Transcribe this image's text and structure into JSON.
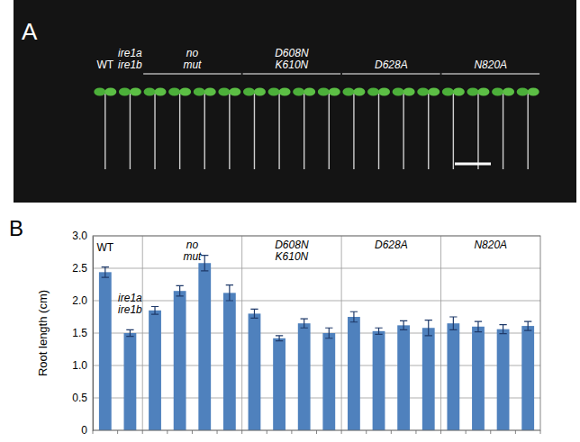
{
  "photo_panel": {
    "letter": "A",
    "labels": [
      "WT",
      "ire1a ire1b",
      "no mut",
      "D608N K610N",
      "D628A",
      "N820A"
    ]
  },
  "chart_data": {
    "type": "bar",
    "panel_letter": "B",
    "y_label": "Root length (cm)",
    "categories": [
      null,
      null,
      null,
      null,
      null,
      null,
      null,
      null,
      null,
      null,
      null,
      null,
      null,
      null,
      null,
      null,
      null,
      null
    ],
    "values": [
      2.44,
      1.5,
      1.85,
      2.15,
      2.58,
      2.12,
      1.8,
      1.42,
      1.65,
      1.5,
      1.75,
      1.53,
      1.62,
      1.58,
      1.65,
      1.6,
      1.56,
      1.61
    ],
    "errors": [
      0.08,
      0.05,
      0.06,
      0.08,
      0.12,
      0.12,
      0.07,
      0.04,
      0.07,
      0.08,
      0.08,
      0.05,
      0.07,
      0.12,
      0.1,
      0.08,
      0.07,
      0.07
    ],
    "groups": [
      {
        "label": "WT",
        "members": [
          0
        ]
      },
      {
        "label": "ire1a ire1b",
        "members": [
          1
        ]
      },
      {
        "label": "no mut",
        "members": [
          2,
          3,
          4,
          5
        ]
      },
      {
        "label": "D608N K610N",
        "members": [
          6,
          7,
          8,
          9
        ]
      },
      {
        "label": "D628A",
        "members": [
          10,
          11,
          12,
          13
        ]
      },
      {
        "label": "N820A",
        "members": [
          14,
          15,
          16,
          17
        ]
      }
    ],
    "color": "#4f81bd",
    "ylim": [
      0,
      3
    ],
    "yticks": [
      0,
      0.5,
      {
        "value": 1,
        "label": "1.0"
      },
      1.5,
      {
        "value": 2,
        "label": "2.0"
      },
      2.5,
      {
        "value": 3,
        "label": "3.0"
      }
    ],
    "grid": true
  }
}
